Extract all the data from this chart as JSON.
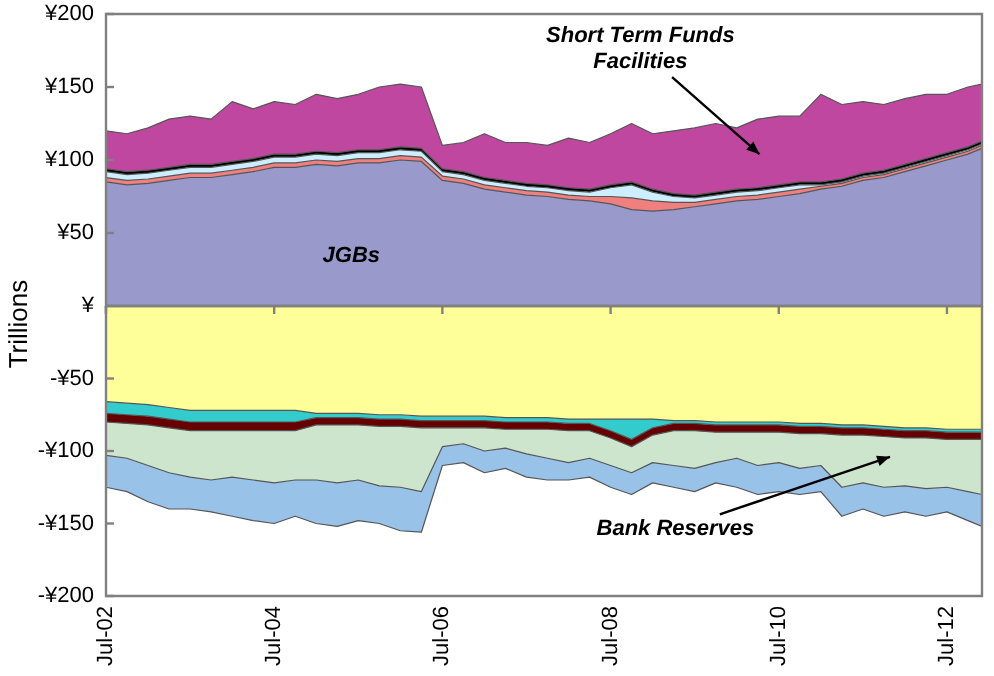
{
  "chart_data": [
    {
      "type": "area",
      "stacked": true,
      "ylabel": "Trillions",
      "legend": false,
      "grid": false,
      "tick_labels": "y",
      "x": [
        "2002-07",
        "2002-10",
        "2003-01",
        "2003-04",
        "2003-07",
        "2003-10",
        "2004-01",
        "2004-04",
        "2004-07",
        "2004-10",
        "2005-01",
        "2005-04",
        "2005-07",
        "2005-10",
        "2006-01",
        "2006-04",
        "2006-07",
        "2006-10",
        "2007-01",
        "2007-04",
        "2007-07",
        "2007-10",
        "2008-01",
        "2008-04",
        "2008-07",
        "2008-10",
        "2009-01",
        "2009-04",
        "2009-07",
        "2009-10",
        "2010-01",
        "2010-04",
        "2010-07",
        "2010-10",
        "2011-01",
        "2011-04",
        "2011-07",
        "2011-10",
        "2012-01",
        "2012-04",
        "2012-07",
        "2012-10",
        "2012-12"
      ],
      "xlim": [
        "2002-07",
        "2012-12"
      ],
      "xticks": [
        {
          "value": "2002-07",
          "label": null
        },
        {
          "value": "2004-07",
          "label": null
        },
        {
          "value": "2006-07",
          "label": null
        },
        {
          "value": "2008-07",
          "label": null
        },
        {
          "value": "2010-07",
          "label": null
        },
        {
          "value": "2012-07",
          "label": null
        }
      ],
      "ylim": [
        0,
        200
      ],
      "yticks": [
        {
          "value": 200,
          "label": "¥200"
        },
        {
          "value": 150,
          "label": "¥150"
        },
        {
          "value": 100,
          "label": "¥100"
        },
        {
          "value": 50,
          "label": "¥50"
        },
        {
          "value": 0,
          "label": "¥"
        }
      ],
      "series": [
        {
          "color": "#9999cc",
          "values": [
            85,
            83,
            84,
            86,
            88,
            88,
            90,
            92,
            95,
            95,
            97,
            96,
            98,
            98,
            100,
            99,
            86,
            84,
            80,
            78,
            76,
            75,
            73,
            72,
            70,
            66,
            65,
            66,
            68,
            70,
            72,
            73,
            75,
            77,
            80,
            82,
            86,
            88,
            92,
            96,
            100,
            104,
            108
          ]
        },
        {
          "color": "#f08080",
          "values": [
            3,
            3,
            3,
            3,
            3,
            3,
            3,
            3,
            3,
            3,
            3,
            3,
            3,
            3,
            3,
            3,
            3,
            3,
            3,
            3,
            3,
            3,
            3,
            3,
            5,
            8,
            7,
            5,
            3,
            3,
            3,
            3,
            3,
            3,
            2,
            2,
            2,
            2,
            2,
            2,
            2,
            2,
            2
          ]
        },
        {
          "color": "#cceeff",
          "values": [
            4,
            4,
            4,
            4,
            4,
            4,
            4,
            4,
            4,
            4,
            4,
            4,
            4,
            4,
            4,
            4,
            3,
            3,
            3,
            3,
            3,
            3,
            3,
            3,
            6,
            9,
            6,
            4,
            3,
            3,
            3,
            3,
            3,
            3,
            1,
            1,
            1,
            1,
            1,
            1,
            1,
            1,
            1
          ]
        },
        {
          "color": "#000000",
          "values": [
            2,
            2,
            2,
            2,
            2,
            2,
            2,
            2,
            2,
            2,
            2,
            2,
            2,
            2,
            2,
            2,
            2,
            2,
            2,
            2,
            2,
            2,
            2,
            2,
            2,
            2,
            2,
            2,
            2,
            2,
            2,
            2,
            2,
            2,
            2,
            2,
            2,
            2,
            2,
            2,
            2,
            2,
            2
          ]
        },
        {
          "color": "#c0479f",
          "values": [
            26,
            26,
            29,
            33,
            33,
            31,
            41,
            34,
            36,
            34,
            39,
            37,
            38,
            43,
            43,
            42,
            16,
            20,
            30,
            26,
            28,
            27,
            34,
            32,
            35,
            40,
            38,
            43,
            46,
            47,
            42,
            47,
            47,
            45,
            60,
            51,
            49,
            45,
            45,
            44,
            40,
            41,
            39
          ]
        }
      ],
      "annotations": [
        "JGBs",
        "Short Term Funds Facilities"
      ]
    },
    {
      "type": "area",
      "stacked": true,
      "legend": false,
      "grid": false,
      "x": [
        "2002-07",
        "2002-10",
        "2003-01",
        "2003-04",
        "2003-07",
        "2003-10",
        "2004-01",
        "2004-04",
        "2004-07",
        "2004-10",
        "2005-01",
        "2005-04",
        "2005-07",
        "2005-10",
        "2006-01",
        "2006-04",
        "2006-07",
        "2006-10",
        "2007-01",
        "2007-04",
        "2007-07",
        "2007-10",
        "2008-01",
        "2008-04",
        "2008-07",
        "2008-10",
        "2009-01",
        "2009-04",
        "2009-07",
        "2009-10",
        "2010-01",
        "2010-04",
        "2010-07",
        "2010-10",
        "2011-01",
        "2011-04",
        "2011-07",
        "2011-10",
        "2012-01",
        "2012-04",
        "2012-07",
        "2012-10",
        "2012-12"
      ],
      "xlim": [
        "2002-07",
        "2012-12"
      ],
      "xticks": [
        {
          "value": "2002-07",
          "label": "Jul-02"
        },
        {
          "value": "2004-07",
          "label": "Jul-04"
        },
        {
          "value": "2006-07",
          "label": "Jul-06"
        },
        {
          "value": "2008-07",
          "label": "Jul-08"
        },
        {
          "value": "2010-07",
          "label": "Jul-10"
        },
        {
          "value": "2012-07",
          "label": "Jul-12"
        }
      ],
      "ylim": [
        -200,
        0
      ],
      "yticks": [
        {
          "value": -50,
          "label": "-¥50"
        },
        {
          "value": -100,
          "label": "-¥100"
        },
        {
          "value": -150,
          "label": "-¥150"
        },
        {
          "value": -200,
          "label": "-¥200"
        }
      ],
      "series": [
        {
          "color": "#ffff99",
          "values": [
            -66,
            -67,
            -68,
            -70,
            -72,
            -72,
            -72,
            -72,
            -72,
            -72,
            -74,
            -74,
            -74,
            -75,
            -75,
            -76,
            -76,
            -76,
            -76,
            -77,
            -77,
            -77,
            -78,
            -78,
            -78,
            -78,
            -78,
            -79,
            -79,
            -80,
            -80,
            -80,
            -80,
            -81,
            -81,
            -82,
            -82,
            -83,
            -84,
            -84,
            -85,
            -85,
            -85
          ]
        },
        {
          "color": "#33cccc",
          "values": [
            -8,
            -8,
            -8,
            -8,
            -8,
            -8,
            -8,
            -8,
            -8,
            -8,
            -3,
            -3,
            -3,
            -3,
            -3,
            -3,
            -3,
            -3,
            -3,
            -3,
            -3,
            -3,
            -3,
            -3,
            -8,
            -14,
            -6,
            -2,
            -2,
            -2,
            -2,
            -2,
            -2,
            -2,
            -2,
            -2,
            -2,
            -2,
            -2,
            -2,
            -2,
            -2,
            -2
          ]
        },
        {
          "color": "#660000",
          "values": [
            -6,
            -6,
            -6,
            -6,
            -6,
            -6,
            -6,
            -6,
            -6,
            -6,
            -5,
            -5,
            -5,
            -5,
            -5,
            -5,
            -5,
            -5,
            -5,
            -5,
            -5,
            -5,
            -5,
            -5,
            -5,
            -5,
            -5,
            -5,
            -5,
            -5,
            -5,
            -5,
            -5,
            -5,
            -5,
            -5,
            -5,
            -5,
            -5,
            -5,
            -5,
            -5,
            -5
          ]
        },
        {
          "color": "#cce5cc",
          "values": [
            -23,
            -24,
            -28,
            -31,
            -32,
            -34,
            -32,
            -34,
            -36,
            -34,
            -38,
            -40,
            -38,
            -41,
            -42,
            -44,
            -13,
            -11,
            -16,
            -13,
            -17,
            -20,
            -22,
            -19,
            -19,
            -18,
            -19,
            -24,
            -26,
            -21,
            -18,
            -23,
            -21,
            -24,
            -22,
            -36,
            -33,
            -35,
            -33,
            -35,
            -33,
            -36,
            -38
          ]
        },
        {
          "color": "#99c2e8",
          "values": [
            -22,
            -23,
            -25,
            -25,
            -22,
            -22,
            -27,
            -28,
            -28,
            -25,
            -30,
            -30,
            -28,
            -26,
            -30,
            -28,
            -13,
            -13,
            -15,
            -14,
            -16,
            -15,
            -12,
            -13,
            -15,
            -15,
            -14,
            -15,
            -16,
            -14,
            -20,
            -20,
            -20,
            -18,
            -18,
            -20,
            -18,
            -20,
            -18,
            -19,
            -17,
            -20,
            -22
          ]
        }
      ],
      "annotations": [
        "Bank Reserves"
      ]
    }
  ]
}
